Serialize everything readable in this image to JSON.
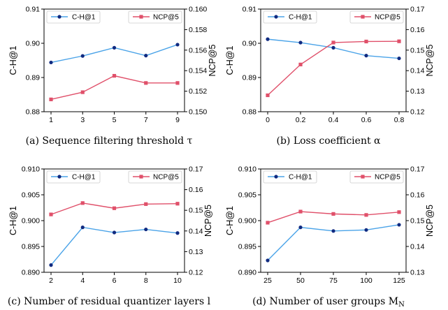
{
  "colors": {
    "chr": "#4aa3e8",
    "chr_marker": "#102a80",
    "ncp": "#e0506a",
    "ncp_marker": "#e0506a"
  },
  "chart_data": [
    {
      "type": "line",
      "caption": "(a)  Sequence filtering threshold τ",
      "x": [
        1,
        3,
        5,
        7,
        9
      ],
      "xticks": [
        "1",
        "3",
        "5",
        "7",
        "9"
      ],
      "ylabel_left": "C-H@1",
      "ylabel_right": "NCP@5",
      "ylim_left": [
        0.88,
        0.91
      ],
      "yticks_left": [
        "0.88",
        "0.89",
        "0.90",
        "0.91"
      ],
      "ylim_right": [
        0.15,
        0.16
      ],
      "yticks_right": [
        "0.150",
        "0.152",
        "0.154",
        "0.156",
        "0.158",
        "0.160"
      ],
      "series": [
        {
          "name": "C-H@1",
          "axis": "left",
          "values": [
            0.8944,
            0.8963,
            0.8987,
            0.8964,
            0.8996
          ]
        },
        {
          "name": "NCP@5",
          "axis": "right",
          "values": [
            0.1512,
            0.1519,
            0.1535,
            0.1528,
            0.1528
          ]
        }
      ]
    },
    {
      "type": "line",
      "caption": "(b)  Loss coefficient α",
      "x": [
        0,
        0.2,
        0.4,
        0.6,
        0.8
      ],
      "xticks": [
        "0",
        "0.2",
        "0.4",
        "0.6",
        "0.8"
      ],
      "ylabel_left": "C-H@1",
      "ylabel_right": "NCP@5",
      "ylim_left": [
        0.88,
        0.91
      ],
      "yticks_left": [
        "0.88",
        "0.89",
        "0.90",
        "0.91"
      ],
      "ylim_right": [
        0.12,
        0.17
      ],
      "yticks_right": [
        "0.12",
        "0.13",
        "0.14",
        "0.15",
        "0.16",
        "0.17"
      ],
      "series": [
        {
          "name": "C-H@1",
          "axis": "left",
          "values": [
            0.9012,
            0.9002,
            0.8987,
            0.8964,
            0.8956
          ]
        },
        {
          "name": "NCP@5",
          "axis": "right",
          "values": [
            0.128,
            0.143,
            0.1537,
            0.1542,
            0.1543
          ]
        }
      ]
    },
    {
      "type": "line",
      "caption": "(c)  Number of residual quantizer layers l",
      "x": [
        2,
        4,
        6,
        8,
        10
      ],
      "xticks": [
        "2",
        "4",
        "6",
        "8",
        "10"
      ],
      "ylabel_left": "C-H@1",
      "ylabel_right": "NCP@5",
      "ylim_left": [
        0.89,
        0.91
      ],
      "yticks_left": [
        "0.890",
        "0.895",
        "0.900",
        "0.905",
        "0.910"
      ],
      "ylim_right": [
        0.12,
        0.17
      ],
      "yticks_right": [
        "0.12",
        "0.13",
        "0.14",
        "0.15",
        "0.16",
        "0.17"
      ],
      "series": [
        {
          "name": "C-H@1",
          "axis": "left",
          "values": [
            0.8914,
            0.8987,
            0.8977,
            0.8983,
            0.8976
          ]
        },
        {
          "name": "NCP@5",
          "axis": "right",
          "values": [
            0.148,
            0.1535,
            0.151,
            0.153,
            0.1532
          ]
        }
      ]
    },
    {
      "type": "line",
      "caption": "(d)  Number of user groups M",
      "caption_sub": "N",
      "x": [
        25,
        50,
        75,
        100,
        125
      ],
      "xticks": [
        "25",
        "50",
        "75",
        "100",
        "125"
      ],
      "ylabel_left": "C-H@1",
      "ylabel_right": "NCP@5",
      "ylim_left": [
        0.89,
        0.91
      ],
      "yticks_left": [
        "0.890",
        "0.895",
        "0.900",
        "0.905",
        "0.910"
      ],
      "ylim_right": [
        0.13,
        0.17
      ],
      "yticks_right": [
        "0.13",
        "0.14",
        "0.15",
        "0.16",
        "0.17"
      ],
      "series": [
        {
          "name": "C-H@1",
          "axis": "left",
          "values": [
            0.8923,
            0.8987,
            0.898,
            0.8982,
            0.8992
          ]
        },
        {
          "name": "NCP@5",
          "axis": "right",
          "values": [
            0.1492,
            0.1535,
            0.1526,
            0.1522,
            0.1533
          ]
        }
      ]
    }
  ]
}
